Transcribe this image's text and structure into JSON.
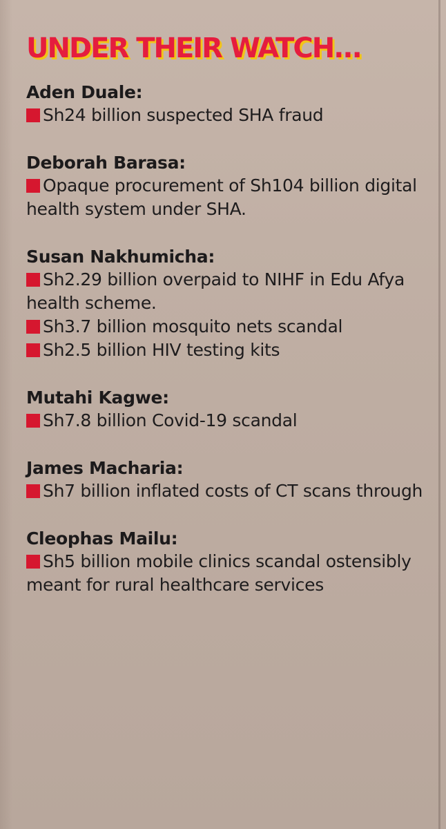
{
  "title": "UNDER THEIR WATCH...",
  "colors": {
    "title": "#e51d3e",
    "title_shadow": "#f2c418",
    "bullet": "#d6172f",
    "text": "#1e1c1d",
    "paper": "#c2b1a6"
  },
  "sections": [
    {
      "name": "Aden Duale:",
      "items": [
        "Sh24 billion suspected SHA fraud"
      ]
    },
    {
      "name": "Deborah Barasa:",
      "items": [
        "Opaque procurement of Sh104 billion digital health system under SHA."
      ]
    },
    {
      "name": "Susan Nakhumicha:",
      "items": [
        "Sh2.29 billion overpaid to NIHF in Edu Afya health scheme.",
        "Sh3.7 billion mosquito nets scandal",
        "Sh2.5 billion HIV testing kits"
      ]
    },
    {
      "name": "Mutahi Kagwe:",
      "items": [
        "Sh7.8 billion Covid-19 scandal"
      ]
    },
    {
      "name": "James Macharia:",
      "items": [
        "Sh7 billion inflated costs of CT scans through"
      ]
    },
    {
      "name": "Cleophas Mailu:",
      "items": [
        "Sh5 billion mobile clinics scandal ostensibly meant for rural healthcare services"
      ]
    }
  ]
}
